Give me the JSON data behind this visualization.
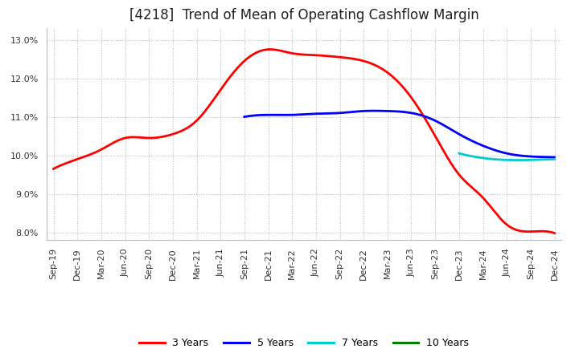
{
  "title": "[4218]  Trend of Mean of Operating Cashflow Margin",
  "ylim": [
    0.078,
    0.133
  ],
  "yticks": [
    0.08,
    0.09,
    0.1,
    0.11,
    0.12,
    0.13
  ],
  "background_color": "#ffffff",
  "grid_color": "#aaaaaa",
  "series": {
    "3 Years": {
      "color": "#ff0000",
      "linewidth": 2.0,
      "x_indices": [
        0,
        1,
        2,
        3,
        4,
        5,
        6,
        7,
        8,
        9,
        10,
        11,
        12,
        13,
        14,
        15,
        16,
        17,
        18,
        19,
        20,
        21
      ],
      "y": [
        0.0965,
        0.099,
        0.1015,
        0.1045,
        0.1045,
        0.1055,
        0.109,
        0.117,
        0.1245,
        0.1275,
        0.1265,
        0.126,
        0.1255,
        0.1245,
        0.1215,
        0.115,
        0.105,
        0.095,
        0.089,
        0.082,
        0.0802,
        0.0798
      ]
    },
    "5 Years": {
      "color": "#0000ff",
      "linewidth": 2.0,
      "x_indices": [
        8,
        9,
        10,
        11,
        12,
        13,
        14,
        15,
        16,
        17,
        18,
        19,
        20,
        21
      ],
      "y": [
        0.11,
        0.1105,
        0.1105,
        0.1108,
        0.111,
        0.1115,
        0.1115,
        0.111,
        0.109,
        0.1055,
        0.1025,
        0.1005,
        0.0997,
        0.0995
      ]
    },
    "7 Years": {
      "color": "#00cccc",
      "linewidth": 2.0,
      "x_indices": [
        17,
        18,
        19,
        20,
        21
      ],
      "y": [
        0.1005,
        0.0993,
        0.0988,
        0.0988,
        0.099
      ]
    },
    "10 Years": {
      "color": "#008000",
      "linewidth": 2.0,
      "x_indices": [],
      "y": []
    }
  },
  "x_labels": [
    "Sep-19",
    "Dec-19",
    "Mar-20",
    "Jun-20",
    "Sep-20",
    "Dec-20",
    "Mar-21",
    "Jun-21",
    "Sep-21",
    "Dec-21",
    "Mar-22",
    "Jun-22",
    "Sep-22",
    "Dec-22",
    "Mar-23",
    "Jun-23",
    "Sep-23",
    "Dec-23",
    "Mar-24",
    "Jun-24",
    "Sep-24",
    "Dec-24"
  ],
  "legend_labels": [
    "3 Years",
    "5 Years",
    "7 Years",
    "10 Years"
  ],
  "legend_colors": [
    "#ff0000",
    "#0000ff",
    "#00cccc",
    "#008000"
  ],
  "title_fontsize": 12,
  "tick_fontsize": 8
}
